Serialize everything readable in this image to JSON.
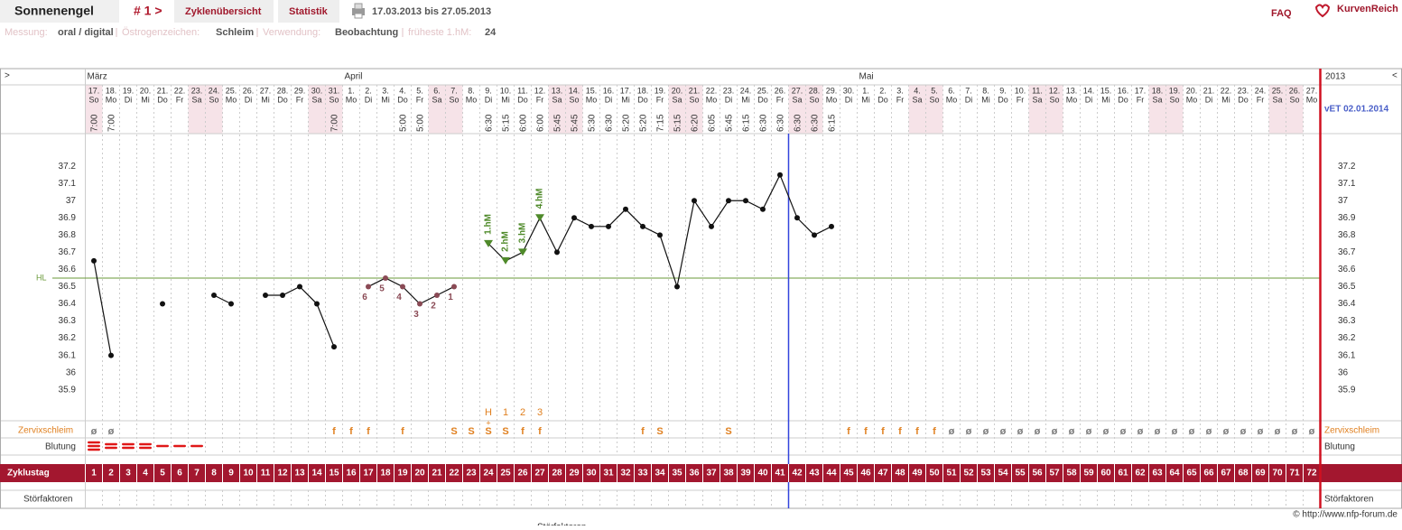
{
  "header": {
    "user": "Sonnenengel",
    "cycle_nav": "# 1 >",
    "tabs": [
      "Zyklenübersicht",
      "Statistik"
    ],
    "period": "17.03.2013 bis 27.05.2013",
    "faq": "FAQ",
    "brand": "KurvenReich"
  },
  "info_bar": {
    "items": [
      {
        "label": "Messung:",
        "value": "oral / digital"
      },
      {
        "label": "Östrogenzeichen:",
        "value": "Schleim"
      },
      {
        "label": "Verwendung:",
        "value": "Beobachtung"
      },
      {
        "label": "früheste 1.hM:",
        "value": "24"
      }
    ]
  },
  "cycle_chart": {
    "nav_left": ">",
    "nav_right": "<",
    "year": "2013",
    "vet": "vET 02.01.2014",
    "months": [
      {
        "label": "März",
        "start_day": 1
      },
      {
        "label": "April",
        "start_day": 16
      },
      {
        "label": "Mai",
        "start_day": 46
      }
    ],
    "dates": [
      "17.",
      "18.",
      "19.",
      "20.",
      "21.",
      "22.",
      "23.",
      "24.",
      "25.",
      "26.",
      "27.",
      "28.",
      "29.",
      "30.",
      "31.",
      "1.",
      "2.",
      "3.",
      "4.",
      "5.",
      "6.",
      "7.",
      "8.",
      "9.",
      "10.",
      "11.",
      "12.",
      "13.",
      "14.",
      "15.",
      "16.",
      "17.",
      "18.",
      "19.",
      "20.",
      "21.",
      "22.",
      "23.",
      "24.",
      "25.",
      "26.",
      "27.",
      "28.",
      "29.",
      "30.",
      "1.",
      "2.",
      "3.",
      "4.",
      "5.",
      "6.",
      "7.",
      "8.",
      "9.",
      "10.",
      "11.",
      "12.",
      "13.",
      "14.",
      "15.",
      "16.",
      "17.",
      "18.",
      "19.",
      "20.",
      "21.",
      "22.",
      "23.",
      "24.",
      "25.",
      "26.",
      "27."
    ],
    "weekdays": [
      "So",
      "Mo",
      "Di",
      "Mi",
      "Do",
      "Fr",
      "Sa",
      "So",
      "Mo",
      "Di",
      "Mi",
      "Do",
      "Fr",
      "Sa",
      "So",
      "Mo",
      "Di",
      "Mi",
      "Do",
      "Fr",
      "Sa",
      "So",
      "Mo",
      "Di",
      "Mi",
      "Do",
      "Fr",
      "Sa",
      "So",
      "Mo",
      "Di",
      "Mi",
      "Do",
      "Fr",
      "Sa",
      "So",
      "Mo",
      "Di",
      "Mi",
      "Do",
      "Fr",
      "Sa",
      "So",
      "Mo",
      "Di",
      "Mi",
      "Do",
      "Fr",
      "Sa",
      "So",
      "Mo",
      "Di",
      "Mi",
      "Do",
      "Fr",
      "Sa",
      "So",
      "Mo",
      "Di",
      "Mi",
      "Do",
      "Fr",
      "Sa",
      "So",
      "Mo",
      "Di",
      "Mi",
      "Do",
      "Fr",
      "Sa",
      "So",
      "Mo"
    ],
    "times": [
      "7:00",
      "7:00",
      null,
      null,
      null,
      null,
      null,
      null,
      null,
      null,
      null,
      null,
      null,
      null,
      "7:00",
      null,
      null,
      null,
      "5:00",
      "5:00",
      null,
      null,
      null,
      "6:30",
      "5:15",
      "6:00",
      "6:00",
      "5:45",
      "5:45",
      "5:30",
      "6:30",
      "5:20",
      "5:20",
      "7:15",
      "5:15",
      "6:20",
      "6:05",
      "5:45",
      "6:15",
      "6:30",
      "6:30",
      "6:30",
      "6:30",
      "6:15",
      null,
      null,
      null,
      null,
      null,
      null,
      null,
      null,
      null,
      null,
      null,
      null,
      null,
      null,
      null,
      null,
      null,
      null,
      null,
      null,
      null,
      null,
      null,
      null,
      null,
      null,
      null,
      null
    ],
    "temps": [
      36.65,
      36.1,
      null,
      null,
      36.4,
      null,
      null,
      36.45,
      36.4,
      null,
      36.45,
      36.45,
      36.5,
      36.4,
      36.15,
      null,
      36.5,
      36.55,
      36.5,
      36.4,
      36.45,
      36.5,
      null,
      36.75,
      36.65,
      36.7,
      36.9,
      36.7,
      36.9,
      36.85,
      36.85,
      36.95,
      36.85,
      36.8,
      36.5,
      37.0,
      36.85,
      37.0,
      37.0,
      36.95,
      37.15,
      36.9,
      36.8,
      36.85,
      null,
      null,
      null,
      null,
      null,
      null,
      null,
      null,
      null,
      null,
      null,
      null,
      null,
      null,
      null,
      null,
      null,
      null,
      null,
      null,
      null,
      null,
      null,
      null,
      null,
      null,
      null,
      null
    ],
    "ylim": [
      35.72,
      37.39
    ],
    "yticks": [
      37.2,
      37.1,
      37,
      36.9,
      36.8,
      36.7,
      36.6,
      36.5,
      36.4,
      36.3,
      36.2,
      36.1,
      36,
      35.9
    ],
    "hl_label": "HL",
    "hl_value": 36.55,
    "low_temps": {
      "start_day": 17,
      "labels": [
        "6",
        "5",
        "4",
        "3",
        "2",
        "1"
      ]
    },
    "high_temps": {
      "start_day": 24,
      "labels": [
        "1.hM",
        "2.hM",
        "3.hM",
        "4.hM"
      ]
    },
    "evaluation_after_day": 41,
    "mucus_label": "Zervixschleim",
    "mucus": [
      "ø",
      "ø",
      null,
      null,
      null,
      null,
      null,
      null,
      null,
      null,
      null,
      null,
      null,
      null,
      "f",
      "f",
      "f",
      null,
      "f",
      null,
      null,
      "S",
      "S",
      "S",
      "S",
      "f",
      "f",
      null,
      null,
      null,
      null,
      null,
      "f",
      "S",
      null,
      null,
      null,
      "S",
      null,
      null,
      null,
      null,
      null,
      null,
      "f",
      "f",
      "f",
      "f",
      "f",
      "f",
      "ø",
      "ø",
      "ø",
      "ø",
      "ø",
      "ø",
      "ø",
      "ø",
      "ø",
      "ø",
      "ø",
      "ø",
      "ø",
      "ø",
      "ø",
      "ø",
      "ø",
      "ø",
      "ø",
      "ø",
      "ø",
      "ø"
    ],
    "peak": {
      "start_day": 24,
      "labels": [
        "H",
        "1",
        "2",
        "3"
      ],
      "mark": "+"
    },
    "bleeding_label": "Blutung",
    "bleeding": [
      3,
      2,
      2,
      2,
      1,
      1,
      1
    ],
    "cycle_day_label": "Zyklustag",
    "cycle_days": [
      1,
      2,
      3,
      4,
      5,
      6,
      7,
      8,
      9,
      10,
      11,
      12,
      13,
      14,
      15,
      16,
      17,
      18,
      19,
      20,
      21,
      22,
      23,
      24,
      25,
      26,
      27,
      28,
      29,
      30,
      31,
      32,
      33,
      34,
      35,
      36,
      37,
      38,
      39,
      40,
      41,
      42,
      43,
      44,
      45,
      46,
      47,
      48,
      49,
      50,
      51,
      52,
      53,
      54,
      55,
      56,
      57,
      58,
      59,
      60,
      61,
      62,
      63,
      64,
      65,
      66,
      67,
      68,
      69,
      70,
      71,
      72
    ],
    "disturbance_label": "Störfaktoren"
  },
  "footer": {
    "cut_label": "Störfaktoren",
    "copyright": "© http://www.nfp-forum.de"
  }
}
